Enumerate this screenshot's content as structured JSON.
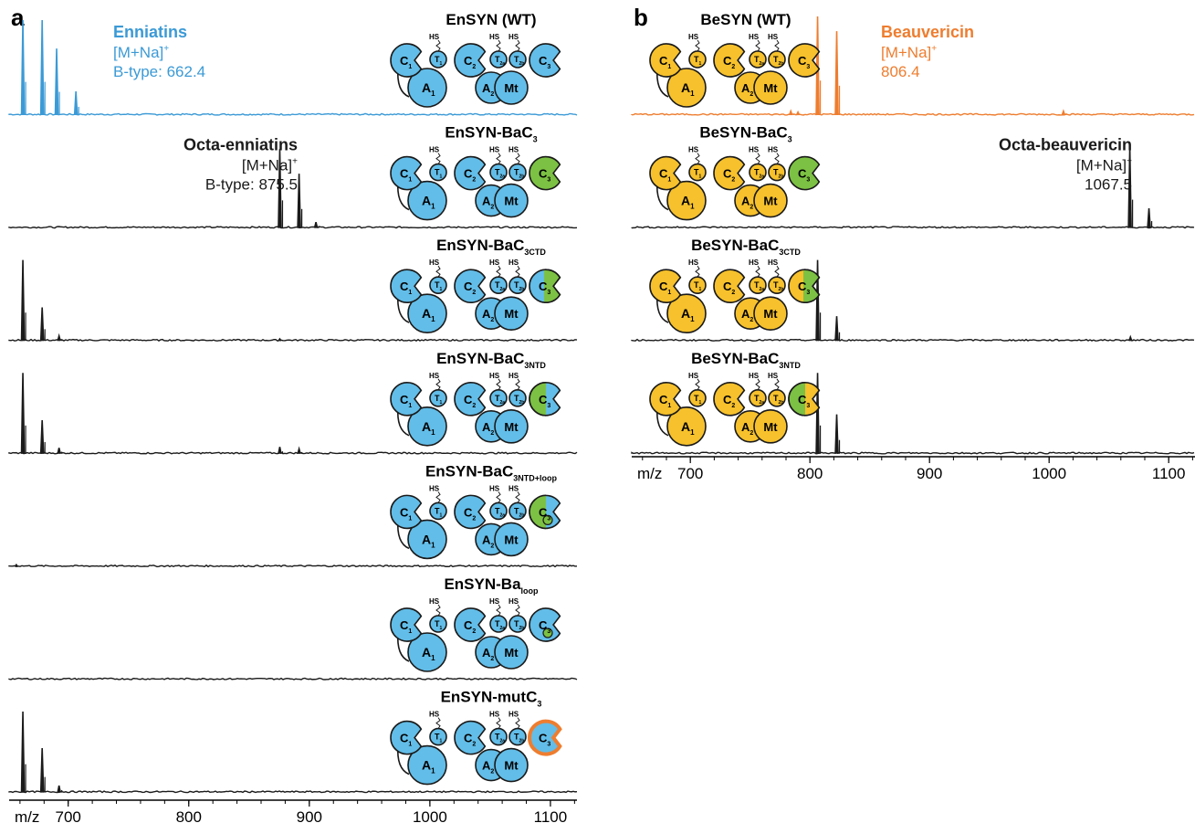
{
  "colors": {
    "enniatin_blue": "#3b9ad6",
    "beauvericin_orange": "#ee7d2f",
    "enzyme_blue": "#62bde8",
    "enzyme_yellow": "#f6c12c",
    "domain_green": "#7cc143",
    "outline": "#1a1a1a",
    "mut_outline": "#ee7d2f"
  },
  "panels": [
    {
      "letter": "a",
      "xlabel": "m/z",
      "xticks": [
        700,
        800,
        900,
        1000,
        1100
      ],
      "xlim": [
        651,
        1122
      ],
      "traces": [
        {
          "title": "EnSYN (WT)",
          "base": "EnSYN (WT)",
          "sub": "",
          "enzyme": "blue",
          "c3": "blue",
          "trace_color": "orange_none",
          "peaks": [
            [
              662.4,
              1.0
            ],
            [
              678.4,
              1.0
            ],
            [
              690.4,
              0.7
            ],
            [
              706.4,
              0.25
            ]
          ],
          "color_key": "enniatin_blue",
          "annotation": {
            "name": "Enniatins",
            "adduct": "[M+Na]",
            "sup": "+",
            "value": "B-type: 662.4",
            "color_key": "enniatin_blue",
            "side": "right"
          }
        },
        {
          "title": "EnSYN-BaC3",
          "base": "EnSYN-BaC",
          "sub": "3",
          "enzyme": "blue",
          "c3": "green",
          "peaks": [
            [
              875.5,
              0.8
            ],
            [
              891.5,
              0.55
            ],
            [
              905.5,
              0.06
            ]
          ],
          "color_key": "outline",
          "annotation": {
            "name": "Octa-enniatins",
            "adduct": "[M+Na]",
            "sup": "+",
            "value": "B-type: 875.5",
            "color_key": "outline",
            "side": "left"
          }
        },
        {
          "title": "EnSYN-BaC3CTD",
          "base": "EnSYN-BaC",
          "sub": "3CTD",
          "enzyme": "blue",
          "c3": "half",
          "peaks": [
            [
              662.4,
              0.82
            ],
            [
              678.4,
              0.34
            ],
            [
              692.4,
              0.05
            ],
            [
              875.5,
              0.02
            ]
          ],
          "color_key": "outline"
        },
        {
          "title": "EnSYN-BaC3NTD",
          "base": "EnSYN-BaC",
          "sub": "3NTD",
          "enzyme": "blue",
          "c3": "half_rev",
          "peaks": [
            [
              662.4,
              0.82
            ],
            [
              678.4,
              0.34
            ],
            [
              692.4,
              0.06
            ],
            [
              875.5,
              0.07
            ],
            [
              891.5,
              0.05
            ]
          ],
          "color_key": "outline"
        },
        {
          "title": "EnSYN-BaC3NTD+loop",
          "base": "EnSYN-BaC",
          "sub": "3NTD+loop",
          "enzyme": "blue",
          "c3": "half_rev_dot",
          "peaks": [
            [
              657,
              0.02
            ]
          ],
          "color_key": "outline"
        },
        {
          "title": "EnSYN-Baloop",
          "base": "EnSYN-Ba",
          "sub": "loop",
          "enzyme": "blue",
          "c3": "blue_dot",
          "peaks": [],
          "color_key": "outline"
        },
        {
          "title": "EnSYN-mutC3",
          "base": "EnSYN-mutC",
          "sub": "3",
          "enzyme": "blue",
          "c3": "mut",
          "peaks": [
            [
              662.4,
              0.82
            ],
            [
              678.4,
              0.45
            ],
            [
              692.4,
              0.07
            ]
          ],
          "color_key": "outline"
        }
      ]
    },
    {
      "letter": "b",
      "xlabel": "m/z",
      "xticks": [
        700,
        800,
        900,
        1000,
        1100
      ],
      "xlim": [
        651,
        1122
      ],
      "traces": [
        {
          "title": "BeSYN (WT)",
          "base": "BeSYN (WT)",
          "sub": "",
          "enzyme": "yellow",
          "c3": "yellow",
          "peaks": [
            [
              806.4,
              1.0
            ],
            [
              822.4,
              0.85
            ],
            [
              784,
              0.04
            ],
            [
              790,
              0.03
            ],
            [
              1012,
              0.04
            ]
          ],
          "color_key": "beauvericin_orange",
          "annotation": {
            "name": "Beauvericin",
            "adduct": "[M+Na]",
            "sup": "+",
            "value": "806.4",
            "color_key": "beauvericin_orange",
            "side": "right"
          }
        },
        {
          "title": "BeSYN-BaC3",
          "base": "BeSYN-BaC",
          "sub": "3",
          "enzyme": "yellow",
          "c3": "green",
          "peaks": [
            [
              1067.5,
              0.82
            ],
            [
              1083.5,
              0.2
            ]
          ],
          "color_key": "outline",
          "annotation": {
            "name": "Octa-beauvericin",
            "adduct": "[M+Na]",
            "sup": "+",
            "value": "1067.5",
            "color_key": "outline",
            "side": "left"
          }
        },
        {
          "title": "BeSYN-BaC3CTD",
          "base": "BeSYN-BaC",
          "sub": "3CTD",
          "enzyme": "yellow",
          "c3": "half",
          "peaks": [
            [
              806.4,
              0.82
            ],
            [
              822.4,
              0.25
            ],
            [
              1068,
              0.04
            ]
          ],
          "color_key": "outline"
        },
        {
          "title": "BeSYN-BaC3NTD",
          "base": "BeSYN-BaC",
          "sub": "3NTD",
          "enzyme": "yellow",
          "c3": "half_rev",
          "peaks": [
            [
              806.4,
              0.82
            ],
            [
              822.4,
              0.4
            ]
          ],
          "color_key": "outline"
        }
      ]
    }
  ],
  "domain_labels": {
    "HS": "HS",
    "C1": "C",
    "C1s": "1",
    "T1": "T",
    "T1s": "1",
    "C2": "C",
    "C2s": "2",
    "T2a": "T",
    "T2as": "2a",
    "T2b": "T",
    "T2bs": "2b",
    "C3": "C",
    "C3s": "3",
    "A1": "A",
    "A1s": "1",
    "A2": "A",
    "A2s": "2",
    "Mt": "Mt"
  },
  "chart_data": [
    {
      "type": "line",
      "title": "",
      "xlabel": "m/z",
      "xticks": [
        700,
        800,
        900,
        1000,
        1100
      ],
      "series": [
        {
          "name": "EnSYN (WT)",
          "peaks_mz": [
            662.4,
            678.4,
            690.4,
            706.4
          ],
          "relative_intensity": [
            1.0,
            1.0,
            0.7,
            0.25
          ]
        },
        {
          "name": "EnSYN-BaC3",
          "peaks_mz": [
            875.5,
            891.5,
            905.5
          ],
          "relative_intensity": [
            0.8,
            0.55,
            0.06
          ]
        },
        {
          "name": "EnSYN-BaC3CTD",
          "peaks_mz": [
            662.4,
            678.4,
            692.4
          ],
          "relative_intensity": [
            0.82,
            0.34,
            0.05
          ]
        },
        {
          "name": "EnSYN-BaC3NTD",
          "peaks_mz": [
            662.4,
            678.4,
            692.4,
            875.5,
            891.5
          ],
          "relative_intensity": [
            0.82,
            0.34,
            0.06,
            0.07,
            0.05
          ]
        },
        {
          "name": "EnSYN-BaC3NTD+loop",
          "peaks_mz": [],
          "relative_intensity": []
        },
        {
          "name": "EnSYN-Baloop",
          "peaks_mz": [],
          "relative_intensity": []
        },
        {
          "name": "EnSYN-mutC3",
          "peaks_mz": [
            662.4,
            678.4,
            692.4
          ],
          "relative_intensity": [
            0.82,
            0.45,
            0.07
          ]
        }
      ]
    },
    {
      "type": "line",
      "title": "",
      "xlabel": "m/z",
      "xticks": [
        700,
        800,
        900,
        1000,
        1100
      ],
      "series": [
        {
          "name": "BeSYN (WT)",
          "peaks_mz": [
            806.4,
            822.4
          ],
          "relative_intensity": [
            1.0,
            0.85
          ]
        },
        {
          "name": "BeSYN-BaC3",
          "peaks_mz": [
            1067.5,
            1083.5
          ],
          "relative_intensity": [
            0.82,
            0.2
          ]
        },
        {
          "name": "BeSYN-BaC3CTD",
          "peaks_mz": [
            806.4,
            822.4
          ],
          "relative_intensity": [
            0.82,
            0.25
          ]
        },
        {
          "name": "BeSYN-BaC3NTD",
          "peaks_mz": [
            806.4,
            822.4
          ],
          "relative_intensity": [
            0.82,
            0.4
          ]
        }
      ]
    }
  ]
}
